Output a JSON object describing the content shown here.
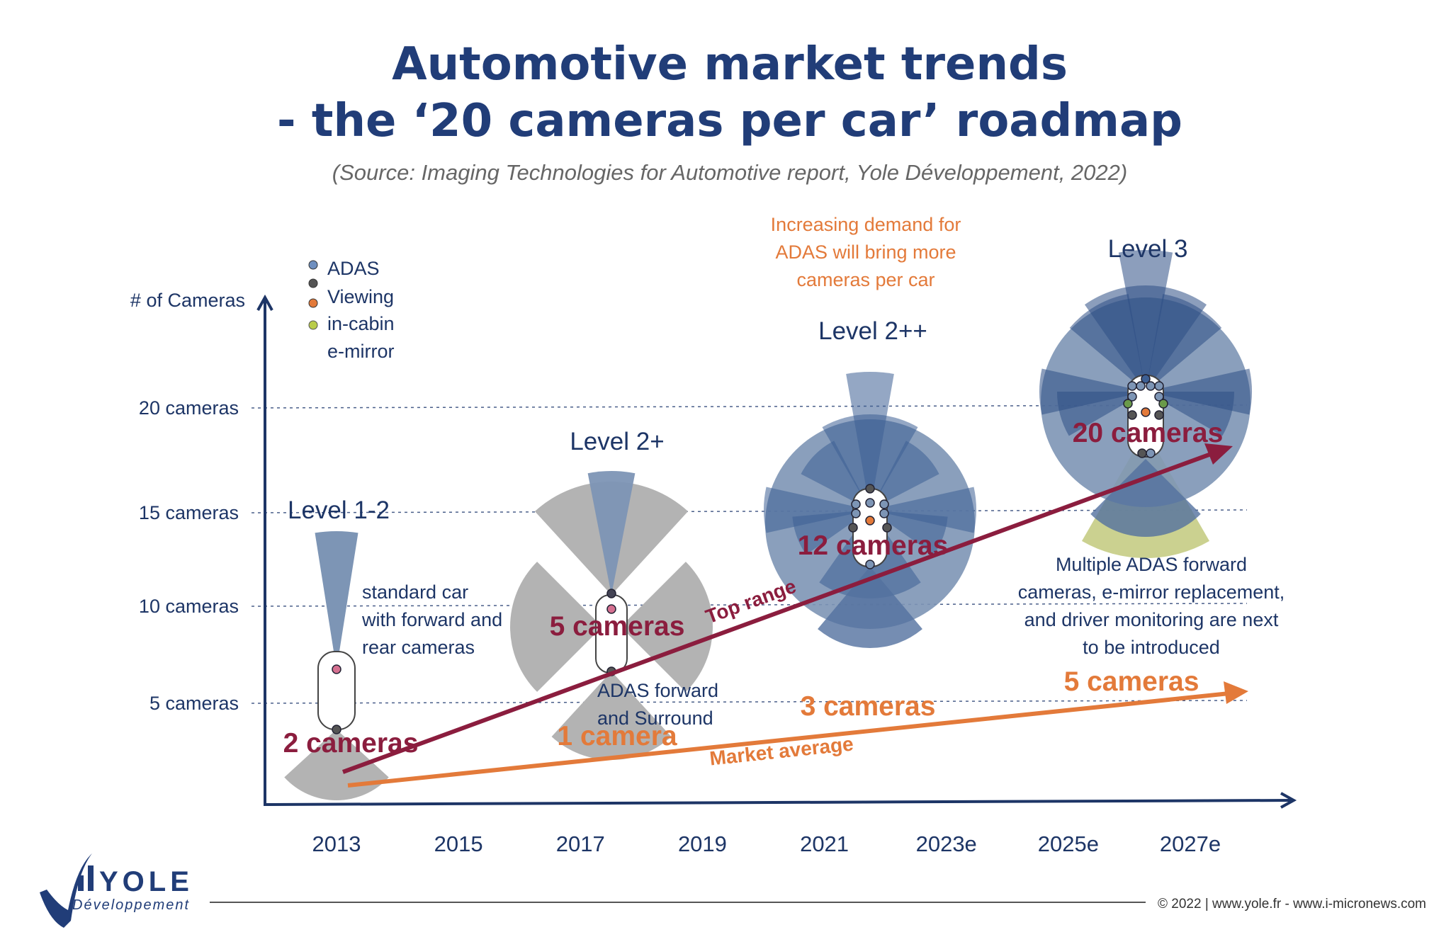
{
  "title_line1": "Automotive market trends",
  "title_line2": "- the ‘20 cameras per car’ roadmap",
  "source": "(Source: Imaging Technologies for Automotive report, Yole Développement, 2022)",
  "legend": [
    {
      "label": "ADAS",
      "color": "#6f8fbf"
    },
    {
      "label": "Viewing",
      "color": "#555555"
    },
    {
      "label": "in-cabin",
      "color": "#e37a3a"
    },
    {
      "label": "e-mirror",
      "color": "#b9cc4a"
    }
  ],
  "chart_data": {
    "type": "line",
    "title": "Automotive market trends - the ‘20 cameras per car’ roadmap",
    "ylabel": "# of Cameras",
    "yticks": [
      "5 cameras",
      "10 cameras",
      "15 cameras",
      "20 cameras"
    ],
    "ytick_values": [
      5,
      10,
      15,
      20
    ],
    "categories": [
      "2013",
      "2015",
      "2017",
      "2019",
      "2021",
      "2023e",
      "2025e",
      "2027e"
    ],
    "grid": "dotted horizontal at y ticks",
    "colors": {
      "top_range": "#8b1d3e",
      "market_average": "#e37a3a",
      "adas": "#7d95b5",
      "viewing": "#b3b3b3",
      "emirror": "#c8cf8a"
    },
    "series": [
      {
        "name": "Top range",
        "points": [
          {
            "x": "2013",
            "y": 2,
            "label": "2 cameras"
          },
          {
            "x": "2017",
            "y": 5,
            "label": "5 cameras"
          },
          {
            "x": "2021",
            "y": 12,
            "label": "12 cameras"
          },
          {
            "x": "2026",
            "y": 20,
            "label": "20 cameras"
          }
        ]
      },
      {
        "name": "Market average",
        "points": [
          {
            "x": "2017",
            "y": 1,
            "label": "1 camera"
          },
          {
            "x": "2021",
            "y": 3,
            "label": "3 cameras"
          },
          {
            "x": "2026",
            "y": 5,
            "label": "5 cameras"
          }
        ]
      }
    ],
    "levels": [
      "Level 1-2",
      "Level 2+",
      "Level 2++",
      "Level 3"
    ],
    "annotations": {
      "standard": [
        "standard car",
        "with forward and",
        "rear cameras"
      ],
      "adas_surround": [
        "ADAS forward",
        "and Surround"
      ],
      "demand": [
        "Increasing demand for",
        "ADAS will bring more",
        "cameras per car"
      ],
      "next": [
        "Multiple ADAS forward",
        "cameras, e-mirror replacement,",
        "and driver monitoring are next",
        "to be introduced"
      ]
    }
  },
  "footer": {
    "logo": "YOLE Développement",
    "copyright": "© 2022 | www.yole.fr - www.i-micronews.com"
  }
}
